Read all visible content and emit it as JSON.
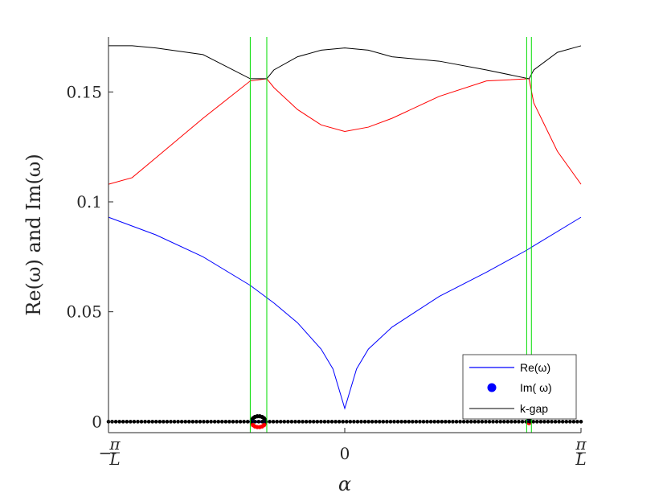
{
  "chart_data": {
    "type": "line",
    "xlabel": "α",
    "ylabel": "Re(ω) and Im(ω)",
    "xlim": [
      -1,
      1
    ],
    "ylim": [
      -0.005,
      0.175
    ],
    "x_tick_values": [
      -1,
      0,
      1
    ],
    "x_tick_labels": [
      {
        "prefix": "−",
        "numerator": "π",
        "denominator": "L"
      },
      {
        "prefix": "",
        "numerator": "0",
        "denominator": ""
      },
      {
        "prefix": "",
        "numerator": "π",
        "denominator": "L"
      }
    ],
    "y_tick_values": [
      0,
      0.05,
      0.1,
      0.15
    ],
    "y_tick_labels": [
      "0",
      "0.05",
      "0.1",
      "0.15"
    ],
    "grid": false,
    "legend": {
      "position": "bottom-right",
      "entries": [
        {
          "label": "Re(ω)",
          "marker": "line",
          "color": "#0000ff"
        },
        {
          "label": "Im( ω)",
          "marker": "dot",
          "color": "#0000ff"
        },
        {
          "label": "k-gap",
          "marker": "line",
          "color": "#000000"
        }
      ]
    },
    "colors": {
      "blue": "#0000ff",
      "red": "#ff0000",
      "black": "#000000",
      "green": "#00dd00"
    },
    "vertical_lines": [
      -0.4,
      -0.33,
      0.77,
      0.79
    ],
    "series": [
      {
        "color": "#0000ff",
        "kind": "line",
        "x": [
          -1,
          -0.8,
          -0.6,
          -0.4,
          -0.3,
          -0.2,
          -0.1,
          -0.05,
          0,
          0.05,
          0.1,
          0.2,
          0.4,
          0.6,
          0.77,
          0.8,
          1
        ],
        "y": [
          0.093,
          0.085,
          0.075,
          0.062,
          0.054,
          0.045,
          0.033,
          0.024,
          0.006,
          0.024,
          0.033,
          0.043,
          0.057,
          0.068,
          0.078,
          0.08,
          0.093
        ]
      },
      {
        "color": "#ff0000",
        "kind": "line",
        "x": [
          -1,
          -0.9,
          -0.8,
          -0.6,
          -0.4,
          -0.33,
          -0.3,
          -0.2,
          -0.1,
          0,
          0.1,
          0.2,
          0.4,
          0.6,
          0.78,
          0.8,
          0.9,
          1
        ],
        "y": [
          0.108,
          0.111,
          0.12,
          0.138,
          0.155,
          0.156,
          0.152,
          0.142,
          0.135,
          0.132,
          0.134,
          0.138,
          0.148,
          0.155,
          0.156,
          0.145,
          0.123,
          0.108
        ]
      },
      {
        "color": "#000000",
        "kind": "line",
        "x": [
          -1,
          -0.9,
          -0.8,
          -0.6,
          -0.4,
          -0.33,
          -0.3,
          -0.2,
          -0.1,
          0,
          0.1,
          0.2,
          0.4,
          0.6,
          0.78,
          0.8,
          0.9,
          1
        ],
        "y": [
          0.171,
          0.171,
          0.17,
          0.167,
          0.156,
          0.156,
          0.16,
          0.166,
          0.169,
          0.17,
          0.169,
          0.166,
          0.164,
          0.16,
          0.156,
          0.16,
          0.168,
          0.171
        ]
      },
      {
        "color": "#000000",
        "kind": "dots",
        "x": [
          -1,
          1
        ],
        "y": [
          0,
          0
        ],
        "count": 130
      }
    ],
    "bubbles": [
      {
        "x": -0.365,
        "y": 0,
        "rx_data": 0.03,
        "ry_data": 0.0025
      },
      {
        "x": 0.78,
        "y": 0,
        "rx_data": 0.005,
        "ry_data": 0.0008
      }
    ]
  }
}
